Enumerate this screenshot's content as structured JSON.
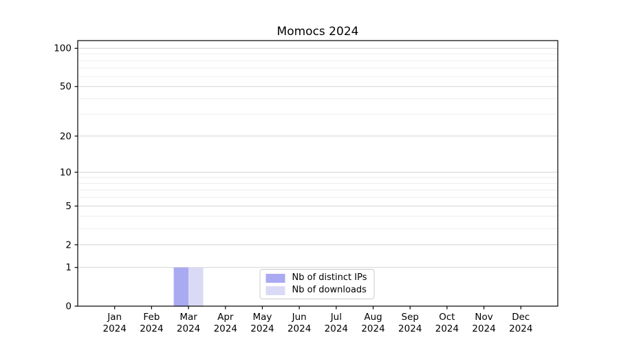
{
  "chart_data": {
    "type": "bar",
    "title": "Momocs 2024",
    "xlabel": "",
    "ylabel": "",
    "categories": [
      "Jan",
      "Feb",
      "Mar",
      "Apr",
      "May",
      "Jun",
      "Jul",
      "Aug",
      "Sep",
      "Oct",
      "Nov",
      "Dec"
    ],
    "category_year": "2024",
    "series": [
      {
        "name": "Nb of distinct IPs",
        "color": "#aaaaf2",
        "values": [
          0,
          0,
          1,
          0,
          0,
          0,
          0,
          0,
          0,
          0,
          0,
          0
        ]
      },
      {
        "name": "Nb of downloads",
        "color": "#dadaf6",
        "values": [
          0,
          0,
          1,
          0,
          0,
          0,
          0,
          0,
          0,
          0,
          0,
          0
        ]
      }
    ],
    "yscale": "log1p",
    "ylim": [
      0,
      115
    ],
    "yticks": [
      0,
      1,
      2,
      5,
      10,
      20,
      50,
      100
    ],
    "minor_gridlines": [
      3,
      4,
      6,
      7,
      8,
      9,
      30,
      40,
      60,
      70,
      80,
      90
    ],
    "grid": "on",
    "legend_position": "lower center",
    "colors": {
      "axis": "#000000",
      "major_grid": "#d2d2d2",
      "minor_grid": "#ededed",
      "background": "#ffffff",
      "legend_border": "#cccccc"
    }
  }
}
